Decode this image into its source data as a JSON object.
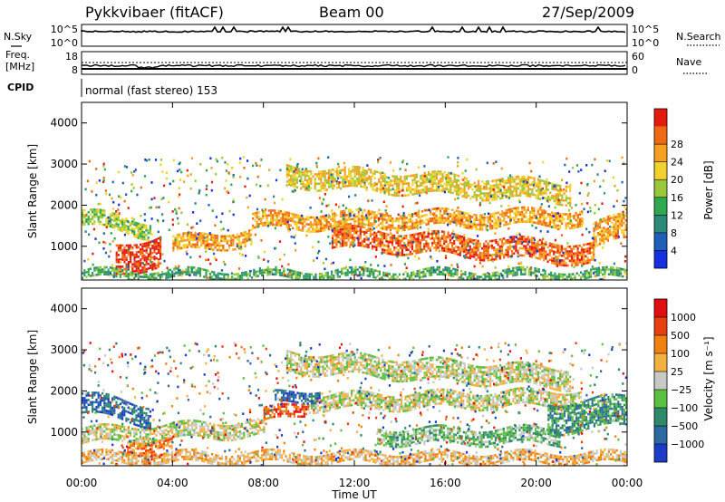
{
  "header": {
    "station": "Pykkvibaer (fitACF)",
    "beam": "Beam 00",
    "date": "27/Sep/2009"
  },
  "noise_panel": {
    "left_label": "N.Sky",
    "left_ticks": [
      "10^5",
      "10^0"
    ],
    "right_label": "N.Search",
    "right_ticks": [
      "10^5",
      "10^0"
    ]
  },
  "freq_panel": {
    "left_label_1": "Freq.",
    "left_label_2": "[MHz]",
    "left_ticks": [
      "18",
      "8"
    ],
    "right_label": "Nave",
    "right_ticks": [
      "60",
      "0"
    ]
  },
  "cpid_panel": {
    "label": "CPID",
    "text": "normal (fast stereo) 153"
  },
  "chart_data": [
    {
      "type": "heatmap",
      "name": "power",
      "ylabel": "Slant Range [km]",
      "xlabel": "Time UT",
      "ylim": [
        180,
        4500
      ],
      "xlim": [
        0,
        24
      ],
      "y_ticks": [
        "1000",
        "2000",
        "3000",
        "4000"
      ],
      "x_ticks": [
        "00:00",
        "04:00",
        "08:00",
        "12:00",
        "16:00",
        "20:00",
        "00:00"
      ],
      "colorbar": {
        "label": "Power [dB]",
        "tick_labels": [
          "4",
          "8",
          "12",
          "16",
          "20",
          "24",
          "28"
        ],
        "colors": [
          "#1530e0",
          "#1f5fb8",
          "#2e8a78",
          "#2fa850",
          "#9ac83a",
          "#f2d22a",
          "#f5a020",
          "#ee6a14",
          "#e41c10"
        ]
      },
      "bands": [
        {
          "from": 9.0,
          "to": 21.5,
          "range_start": 2700,
          "range_end": 2300,
          "thickness": 500,
          "level": 5
        },
        {
          "from": 7.5,
          "to": 22.0,
          "range_start": 1600,
          "range_end": 1700,
          "thickness": 400,
          "level": 6
        },
        {
          "from": 11.0,
          "to": 22.5,
          "range_start": 1200,
          "range_end": 800,
          "thickness": 500,
          "level": 7
        },
        {
          "from": 4.0,
          "to": 7.5,
          "range_start": 1000,
          "range_end": 1200,
          "thickness": 350,
          "level": 6
        },
        {
          "from": 1.5,
          "to": 3.5,
          "range_start": 600,
          "range_end": 900,
          "thickness": 700,
          "level": 8
        },
        {
          "from": 0.0,
          "to": 3.0,
          "range_start": 1700,
          "range_end": 1400,
          "thickness": 400,
          "level": 4
        },
        {
          "from": 0.0,
          "to": 24.0,
          "range_start": 300,
          "range_end": 300,
          "thickness": 200,
          "level": 3
        },
        {
          "from": 22.5,
          "to": 24.0,
          "range_start": 1200,
          "range_end": 1500,
          "thickness": 600,
          "level": 6
        }
      ]
    },
    {
      "type": "heatmap",
      "name": "velocity",
      "ylabel": "Slant Range [km]",
      "xlabel": "Time UT",
      "ylim": [
        180,
        4500
      ],
      "xlim": [
        0,
        24
      ],
      "y_ticks": [
        "1000",
        "2000",
        "3000",
        "4000"
      ],
      "x_ticks": [
        "00:00",
        "04:00",
        "08:00",
        "12:00",
        "16:00",
        "20:00",
        "00:00"
      ],
      "colorbar": {
        "label": "Velocity [m s⁻¹]",
        "tick_labels": [
          "1000",
          "500",
          "100",
          "25",
          "−25",
          "−100",
          "−500",
          "−1000"
        ],
        "colors": [
          "#1a3cc8",
          "#2a6aa0",
          "#2f8a6a",
          "#5cc040",
          "#c8c8c4",
          "#f2b040",
          "#f08010",
          "#e84010",
          "#e01010"
        ]
      },
      "bands": [
        {
          "from": 9.0,
          "to": 21.5,
          "range_start": 2700,
          "range_end": 2300,
          "thickness": 500,
          "level": 4
        },
        {
          "from": 10.0,
          "to": 22.0,
          "range_start": 1700,
          "range_end": 1800,
          "thickness": 350,
          "level": 4
        },
        {
          "from": 8.0,
          "to": 10.0,
          "range_start": 1350,
          "range_end": 1600,
          "thickness": 300,
          "level": 7
        },
        {
          "from": 8.5,
          "to": 10.5,
          "range_start": 1800,
          "range_end": 1900,
          "thickness": 250,
          "level": 1
        },
        {
          "from": 13.0,
          "to": 21.0,
          "range_start": 900,
          "range_end": 900,
          "thickness": 400,
          "level": 3
        },
        {
          "from": 20.5,
          "to": 24.0,
          "range_start": 1300,
          "range_end": 1500,
          "thickness": 700,
          "level": 2
        },
        {
          "from": 0.0,
          "to": 8.0,
          "range_start": 900,
          "range_end": 1100,
          "thickness": 400,
          "level": 4
        },
        {
          "from": 2.0,
          "to": 4.0,
          "range_start": 600,
          "range_end": 700,
          "thickness": 300,
          "level": 6
        },
        {
          "from": 0.0,
          "to": 3.0,
          "range_start": 1700,
          "range_end": 1400,
          "thickness": 500,
          "level": 1
        },
        {
          "from": 0.0,
          "to": 24.0,
          "range_start": 350,
          "range_end": 350,
          "thickness": 250,
          "level": 5
        }
      ]
    }
  ]
}
